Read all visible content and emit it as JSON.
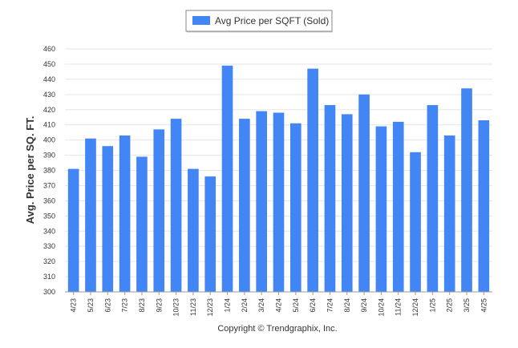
{
  "chart_data": {
    "type": "bar",
    "categories": [
      "4/23",
      "5/23",
      "6/23",
      "7/23",
      "8/23",
      "9/23",
      "10/23",
      "11/23",
      "12/23",
      "1/24",
      "2/24",
      "3/24",
      "4/24",
      "5/24",
      "6/24",
      "7/24",
      "8/24",
      "9/24",
      "10/24",
      "11/24",
      "12/24",
      "1/25",
      "2/25",
      "3/25",
      "4/25"
    ],
    "series": [
      {
        "name": "Avg Price per SQFT (Sold)",
        "color": "#4285f4",
        "values": [
          381,
          401,
          396,
          403,
          389,
          407,
          414,
          381,
          376,
          449,
          414,
          419,
          418,
          411,
          447,
          423,
          417,
          430,
          409,
          412,
          392,
          423,
          403,
          434,
          413
        ]
      }
    ],
    "ylabel": "Avg. Price per SQ. FT.",
    "xlabel": "",
    "ylim": [
      300,
      460
    ],
    "yticks": [
      300,
      310,
      320,
      330,
      340,
      350,
      360,
      370,
      380,
      390,
      400,
      410,
      420,
      430,
      440,
      450,
      460
    ],
    "grid": true,
    "legend_position": "top-center"
  },
  "footer": {
    "copyright": "Copyright © Trendgraphix, Inc."
  }
}
